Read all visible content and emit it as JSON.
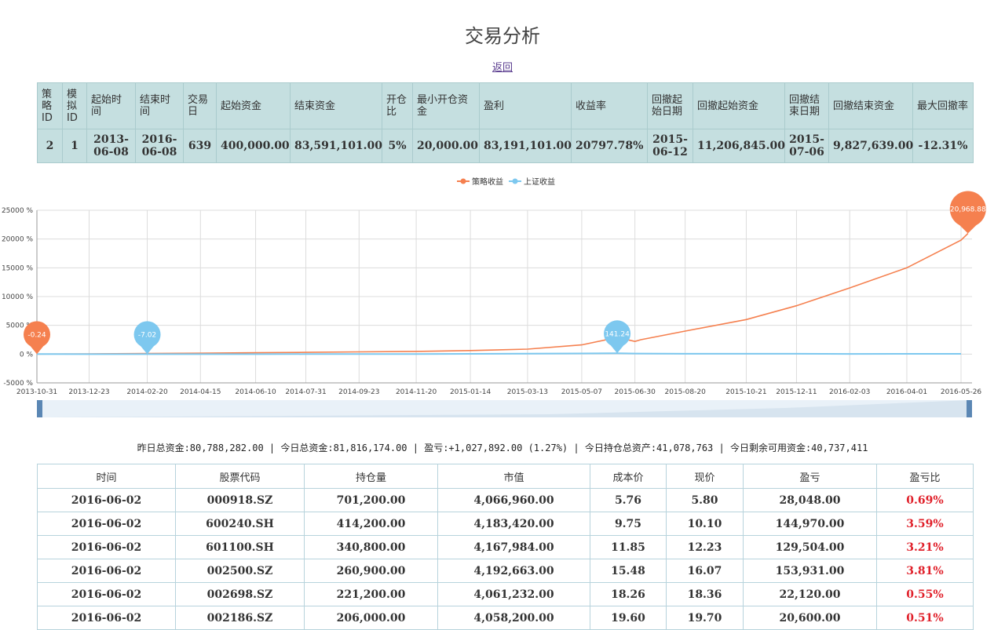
{
  "title": "交易分析",
  "back_label": "返回",
  "summary": {
    "headers": [
      "策略ID",
      "模拟ID",
      "起始时间",
      "结束时间",
      "交易日",
      "起始资金",
      "结束资金",
      "开仓比",
      "最小开仓资金",
      "盈利",
      "收益率",
      "回撤起始日期",
      "回撤起始资金",
      "回撤结束日期",
      "回撤结束资金",
      "最大回撤率"
    ],
    "values": [
      "2",
      "1",
      "2013-06-08",
      "2016-06-08",
      "639",
      "400,000.00",
      "83,591,101.00",
      "5%",
      "20,000.00",
      "83,191,101.00",
      "20797.78%",
      "2015-06-12",
      "11,206,845.00",
      "2015-07-06",
      "9,827,639.00",
      "-12.31%"
    ]
  },
  "chart_data": {
    "type": "line",
    "legend": [
      "策略收益",
      "上证收益"
    ],
    "legend_position": "top-center",
    "x_ticks": [
      "2013-10-31",
      "2013-12-23",
      "2014-02-20",
      "2014-04-15",
      "2014-06-10",
      "2014-07-31",
      "2014-09-23",
      "2014-11-20",
      "2015-01-14",
      "2015-03-13",
      "2015-05-07",
      "2015-06-30",
      "2015-08-20",
      "2015-10-21",
      "2015-12-11",
      "2016-02-03",
      "2016-04-01",
      "2016-05-26"
    ],
    "y_ticks": [
      "25000 %",
      "20000 %",
      "15000 %",
      "10000 %",
      "5000 %",
      "0 %",
      "-5000 %"
    ],
    "ylim": [
      -5000,
      25000
    ],
    "grid": true,
    "series": [
      {
        "name": "策略收益",
        "color": "#f5804f",
        "x": [
          "2013-10-31",
          "2013-12-23",
          "2014-02-20",
          "2014-04-15",
          "2014-06-10",
          "2014-07-31",
          "2014-09-23",
          "2014-11-20",
          "2015-01-14",
          "2015-03-13",
          "2015-05-07",
          "2015-06-12",
          "2015-06-30",
          "2015-07-06",
          "2015-08-20",
          "2015-10-21",
          "2015-12-11",
          "2016-02-03",
          "2016-04-01",
          "2016-05-26",
          "2016-06-02"
        ],
        "values": [
          -0.24,
          40,
          110,
          160,
          230,
          300,
          380,
          470,
          620,
          860,
          1600,
          2900,
          2200,
          2500,
          4000,
          6000,
          8400,
          11500,
          15000,
          19800,
          20968.88
        ]
      },
      {
        "name": "上证收益",
        "color": "#7dc8ef",
        "x": [
          "2013-10-31",
          "2013-12-23",
          "2014-02-20",
          "2014-04-15",
          "2014-06-10",
          "2014-07-31",
          "2014-09-23",
          "2014-11-20",
          "2015-01-14",
          "2015-03-13",
          "2015-05-07",
          "2015-06-12",
          "2015-06-30",
          "2015-08-20",
          "2015-10-21",
          "2015-12-11",
          "2016-02-03",
          "2016-04-01",
          "2016-05-26"
        ],
        "values": [
          0,
          -3,
          -7.02,
          -5,
          -4,
          2,
          8,
          18,
          50,
          80,
          110,
          141.24,
          95,
          55,
          60,
          65,
          35,
          42,
          40
        ]
      }
    ],
    "markers": [
      {
        "label": "-0.24",
        "series": 0,
        "x": "2013-10-31",
        "value": -0.24
      },
      {
        "label": "-7.02",
        "series": 1,
        "x": "2014-02-20",
        "value": -7.02
      },
      {
        "label": "141.24",
        "series": 1,
        "x": "2015-06-12",
        "value": 141.24
      },
      {
        "label": "20,968.88",
        "series": 0,
        "x": "2016-06-02",
        "value": 20968.88
      }
    ]
  },
  "account_summary": "昨日总资金:80,788,282.00 | 今日总资金:81,816,174.00 | 盈亏:+1,027,892.00 (1.27%) | 今日持仓总资产:41,078,763 | 今日剩余可用资金:40,737,411",
  "holdings": {
    "headers": [
      "时间",
      "股票代码",
      "持仓量",
      "市值",
      "成本价",
      "现价",
      "盈亏",
      "盈亏比"
    ],
    "rows": [
      [
        "2016-06-02",
        "000918.SZ",
        "701,200.00",
        "4,066,960.00",
        "5.76",
        "5.80",
        "28,048.00",
        "0.69%"
      ],
      [
        "2016-06-02",
        "600240.SH",
        "414,200.00",
        "4,183,420.00",
        "9.75",
        "10.10",
        "144,970.00",
        "3.59%"
      ],
      [
        "2016-06-02",
        "601100.SH",
        "340,800.00",
        "4,167,984.00",
        "11.85",
        "12.23",
        "129,504.00",
        "3.21%"
      ],
      [
        "2016-06-02",
        "002500.SZ",
        "260,900.00",
        "4,192,663.00",
        "15.48",
        "16.07",
        "153,931.00",
        "3.81%"
      ],
      [
        "2016-06-02",
        "002698.SZ",
        "221,200.00",
        "4,061,232.00",
        "18.26",
        "18.36",
        "22,120.00",
        "0.55%"
      ],
      [
        "2016-06-02",
        "002186.SZ",
        "206,000.00",
        "4,058,200.00",
        "19.60",
        "19.70",
        "20,600.00",
        "0.51%"
      ]
    ]
  }
}
